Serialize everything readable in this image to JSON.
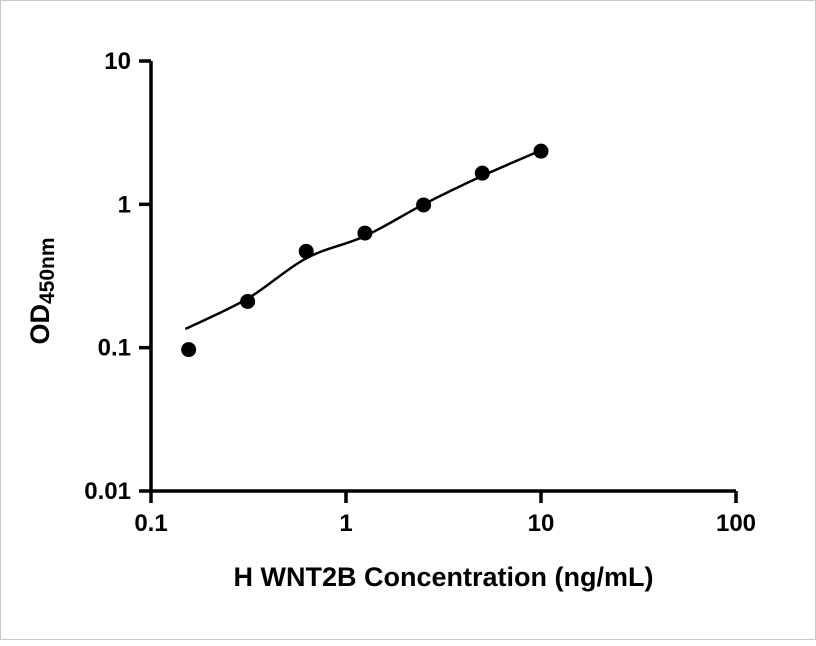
{
  "chart_data": {
    "type": "scatter",
    "title": "",
    "xlabel": "H WNT2B Concentration (ng/mL)",
    "ylabel": "OD",
    "ylabel_sub": "450nm",
    "x_scale": "log",
    "y_scale": "log",
    "xlim": [
      0.1,
      100
    ],
    "ylim": [
      0.01,
      10
    ],
    "grid": false,
    "legend": "none",
    "x_ticks": [
      0.1,
      1,
      10,
      100
    ],
    "x_tick_labels": [
      "0.1",
      "1",
      "10",
      "100"
    ],
    "y_ticks": [
      0.01,
      0.1,
      1,
      10
    ],
    "y_tick_labels": [
      "0.01",
      "0.1",
      "1",
      "10"
    ],
    "series": [
      {
        "name": "standard-points",
        "type": "scatter",
        "x": [
          0.156,
          0.313,
          0.625,
          1.25,
          2.5,
          5,
          10
        ],
        "y": [
          0.097,
          0.21,
          0.47,
          0.63,
          0.99,
          1.65,
          2.35
        ]
      },
      {
        "name": "fit-curve",
        "type": "line",
        "x": [
          0.15,
          0.313,
          0.625,
          1.25,
          2.5,
          5,
          10
        ],
        "y": [
          0.135,
          0.22,
          0.42,
          0.6,
          1.0,
          1.58,
          2.38
        ]
      }
    ],
    "point_color": "#000000",
    "line_color": "#000000",
    "axis_color": "#000000"
  }
}
